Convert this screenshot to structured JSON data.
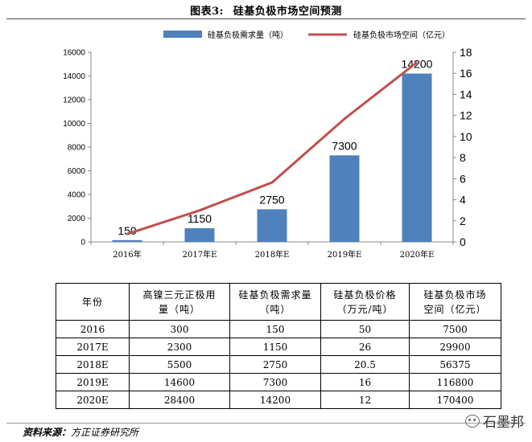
{
  "figure": {
    "number_label": "图表3:",
    "title": "硅基负极市场空间预测"
  },
  "chart_data": {
    "type": "bar+line",
    "categories": [
      "2016年",
      "2017年E",
      "2018年E",
      "2019年E",
      "2020年E"
    ],
    "series": [
      {
        "name": "硅基负极需求量（吨）",
        "type": "bar",
        "axis": "left",
        "values": [
          150,
          1150,
          2750,
          7300,
          14200
        ],
        "color": "#4f81bd"
      },
      {
        "name": "硅基负极市场空间（亿元）",
        "type": "line",
        "axis": "right",
        "values": [
          0.75,
          2.99,
          5.6375,
          11.68,
          17.04
        ],
        "color": "#c0504d"
      }
    ],
    "y_left": {
      "min": 0,
      "max": 16000,
      "ticks": [
        0,
        2000,
        4000,
        6000,
        8000,
        10000,
        12000,
        14000,
        16000
      ]
    },
    "y_right": {
      "min": 0,
      "max": 18,
      "ticks": [
        0,
        2,
        4,
        6,
        8,
        10,
        12,
        14,
        16,
        18
      ]
    },
    "data_labels": [
      "150",
      "1150",
      "2750",
      "7300",
      "14200"
    ],
    "legend_position": "top",
    "grid": false
  },
  "table": {
    "headers": [
      "年份",
      "高镍三元正极用量（吨）",
      "硅基负极需求量（吨）",
      "硅基负极价格（万元/吨）",
      "硅基负极市场空间（亿元）"
    ],
    "header_lines": [
      [
        "年份"
      ],
      [
        "高镍三元正极用",
        "量（吨）"
      ],
      [
        "硅基负极需求量",
        "（吨）"
      ],
      [
        "硅基负极价格",
        "（万元/吨）"
      ],
      [
        "硅基负极市场",
        "空间（亿元）"
      ]
    ],
    "rows": [
      [
        "2016",
        "300",
        "150",
        "50",
        "7500"
      ],
      [
        "2017E",
        "2300",
        "1150",
        "26",
        "29900"
      ],
      [
        "2018E",
        "5500",
        "2750",
        "20.5",
        "56375"
      ],
      [
        "2019E",
        "14600",
        "7300",
        "16",
        "116800"
      ],
      [
        "2020E",
        "28400",
        "14200",
        "12",
        "170400"
      ]
    ]
  },
  "source": {
    "label": "资料来源：",
    "text": "方正证券研究所"
  },
  "watermark": {
    "text": "石墨邦",
    "icon": "wechat-icon"
  }
}
